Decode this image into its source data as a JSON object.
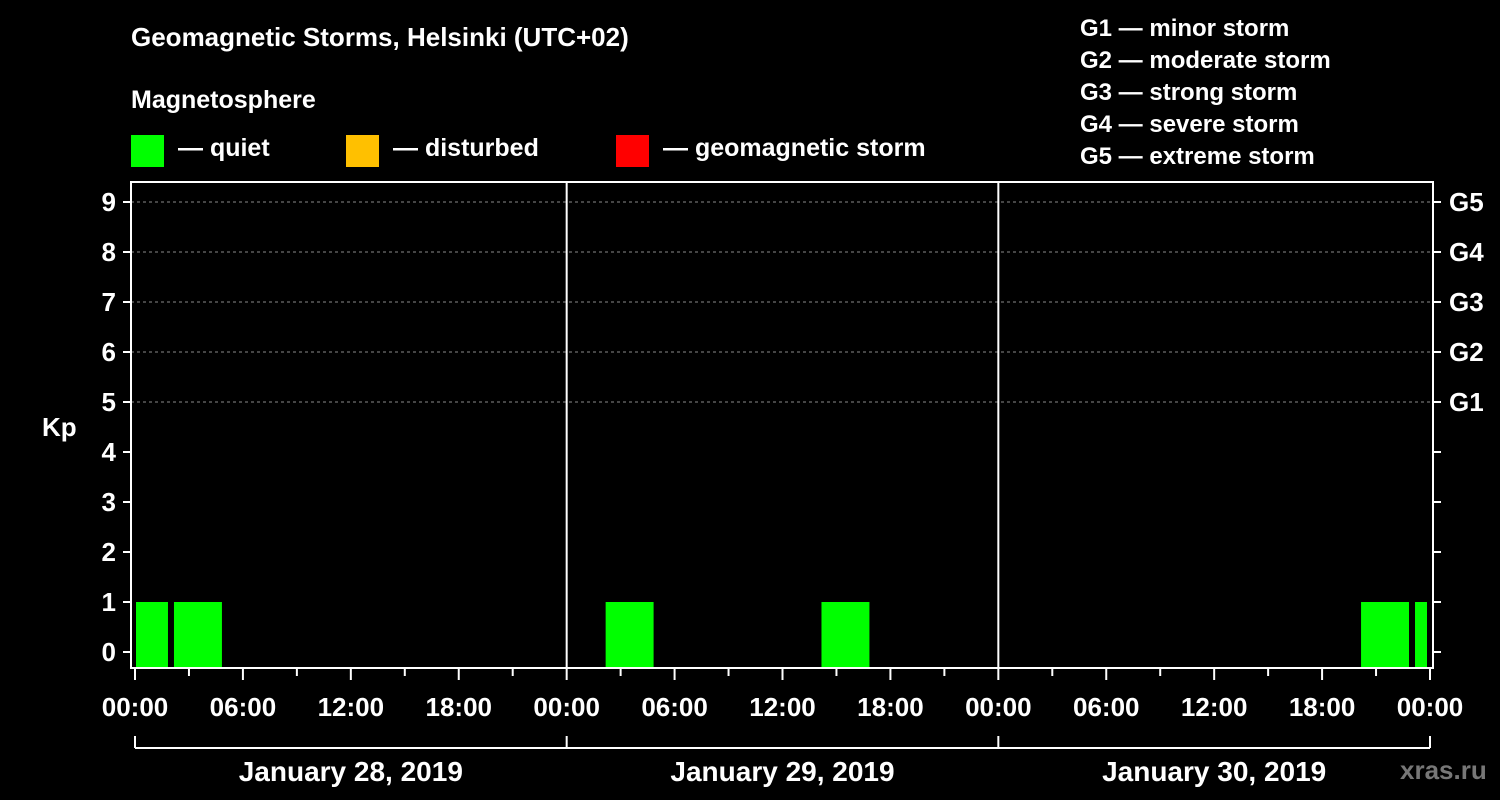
{
  "header": {
    "title": "Geomagnetic Storms, Helsinki (UTC+02)",
    "subtitle": "Magnetosphere"
  },
  "legend": [
    {
      "label": "— quiet",
      "color": "#00ff00"
    },
    {
      "label": "— disturbed",
      "color": "#ffc000"
    },
    {
      "label": "— geomagnetic storm",
      "color": "#ff0000"
    }
  ],
  "storm_scale": [
    "G1 — minor storm",
    "G2 — moderate storm",
    "G3 — strong storm",
    "G4 — severe storm",
    "G5 — extreme storm"
  ],
  "watermark": "xras.ru",
  "chart_data": {
    "type": "bar",
    "title": "Geomagnetic Storms, Helsinki (UTC+02)",
    "ylabel": "Kp",
    "ylim": [
      0,
      9
    ],
    "yticks": [
      "0",
      "1",
      "2",
      "3",
      "4",
      "5",
      "6",
      "7",
      "8",
      "9"
    ],
    "y2ticks": [
      {
        "kp": 5,
        "label": "G1"
      },
      {
        "kp": 6,
        "label": "G2"
      },
      {
        "kp": 7,
        "label": "G3"
      },
      {
        "kp": 8,
        "label": "G4"
      },
      {
        "kp": 9,
        "label": "G5"
      }
    ],
    "xrange_hours": [
      0,
      72
    ],
    "xticks": [
      {
        "h": 0,
        "label": "00:00"
      },
      {
        "h": 6,
        "label": "06:00"
      },
      {
        "h": 12,
        "label": "12:00"
      },
      {
        "h": 18,
        "label": "18:00"
      },
      {
        "h": 24,
        "label": "00:00"
      },
      {
        "h": 30,
        "label": "06:00"
      },
      {
        "h": 36,
        "label": "12:00"
      },
      {
        "h": 42,
        "label": "18:00"
      },
      {
        "h": 48,
        "label": "00:00"
      },
      {
        "h": 54,
        "label": "06:00"
      },
      {
        "h": 60,
        "label": "12:00"
      },
      {
        "h": 66,
        "label": "18:00"
      },
      {
        "h": 72,
        "label": "00:00"
      }
    ],
    "days": [
      {
        "label": "January 28, 2019",
        "start": 0,
        "end": 24
      },
      {
        "label": "January 29, 2019",
        "start": 24,
        "end": 48
      },
      {
        "label": "January 30, 2019",
        "start": 48,
        "end": 72
      }
    ],
    "gridlines_kp": [
      5,
      6,
      7,
      8,
      9
    ],
    "bars": [
      {
        "start": 0,
        "end": 2,
        "kp": 1,
        "status": "quiet"
      },
      {
        "start": 2,
        "end": 5,
        "kp": 1,
        "status": "quiet"
      },
      {
        "start": 26,
        "end": 29,
        "kp": 1,
        "status": "quiet"
      },
      {
        "start": 38,
        "end": 41,
        "kp": 1,
        "status": "quiet"
      },
      {
        "start": 68,
        "end": 71,
        "kp": 1,
        "status": "quiet"
      },
      {
        "start": 71,
        "end": 72,
        "kp": 1,
        "status": "quiet"
      }
    ],
    "status_colors": {
      "quiet": "#00ff00",
      "disturbed": "#ffc000",
      "storm": "#ff0000"
    }
  }
}
